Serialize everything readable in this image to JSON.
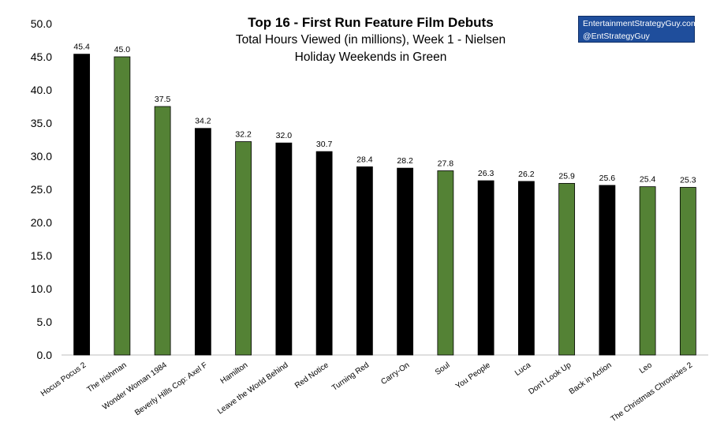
{
  "chart_data": {
    "type": "bar",
    "title": "Top 16 - First Run Feature Film Debuts",
    "subtitle": [
      "Total Hours Viewed (in millions), Week 1 - Nielsen",
      "Holiday Weekends in Green"
    ],
    "xlabel": "",
    "ylabel": "",
    "ylim": [
      0,
      50
    ],
    "yticks": [
      "0.0",
      "5.0",
      "10.0",
      "15.0",
      "20.0",
      "25.0",
      "30.0",
      "35.0",
      "40.0",
      "45.0",
      "50.0"
    ],
    "grid": false,
    "categories": [
      "Hocus Pocus 2",
      "The Irishman",
      "Wonder Woman 1984",
      "Beverly Hills Cop: Axel F",
      "Hamilton",
      "Leave the World Behind",
      "Red Notice",
      "Turning Red",
      "Carry-On",
      "Soul",
      "You People",
      "Luca",
      "Don't Look Up",
      "Back in Action",
      "Leo",
      "The Christmas Chronicles 2"
    ],
    "values": [
      45.4,
      45.0,
      37.5,
      34.2,
      32.2,
      32.0,
      30.7,
      28.4,
      28.2,
      27.8,
      26.3,
      26.2,
      25.9,
      25.6,
      25.4,
      25.3
    ],
    "value_labels": [
      "45.4",
      "45.0",
      "37.5",
      "34.2",
      "32.2",
      "32.0",
      "30.7",
      "28.4",
      "28.2",
      "27.8",
      "26.3",
      "26.2",
      "25.9",
      "25.6",
      "25.4",
      "25.3"
    ],
    "holiday": [
      false,
      true,
      true,
      false,
      true,
      false,
      false,
      false,
      false,
      true,
      false,
      false,
      true,
      false,
      true,
      true
    ],
    "colors": {
      "holiday": "#548235",
      "regular": "#000000"
    }
  },
  "brand": {
    "line1": "EntertainmentStrategyGuy.com",
    "line2": "@EntStrategyGuy"
  }
}
